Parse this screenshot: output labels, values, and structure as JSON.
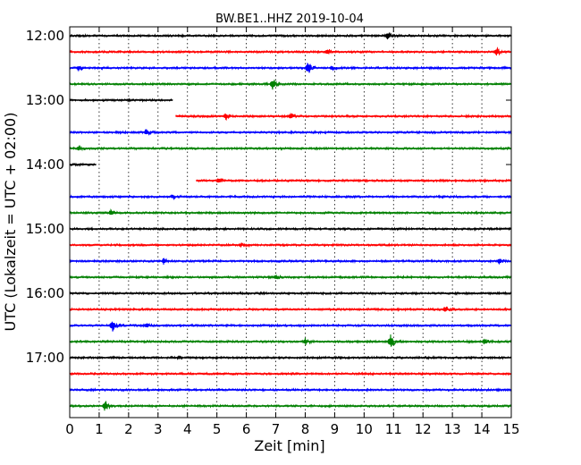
{
  "chart_data": {
    "type": "line",
    "title": "BW.BE1..HHZ 2019-10-04",
    "xlabel": "Zeit  [min]",
    "ylabel": "UTC (Lokalzeit = UTC + 02:00)",
    "xlim": [
      0,
      15
    ],
    "x_ticks": [
      "0",
      "1",
      "2",
      "3",
      "4",
      "5",
      "6",
      "7",
      "8",
      "9",
      "10",
      "11",
      "12",
      "13",
      "14",
      "15"
    ],
    "y_ticks": [
      "12:00",
      "13:00",
      "14:00",
      "15:00",
      "16:00",
      "17:00"
    ],
    "grid": "vertical dotted",
    "trace_colors": [
      "#000000",
      "#ff0000",
      "#0000ff",
      "#008000"
    ],
    "traces": [
      {
        "start": "12:00",
        "data_start_min": 0,
        "data_end_min": 15,
        "events": [
          {
            "t": 10.8,
            "amp": 0.5
          }
        ]
      },
      {
        "start": "12:15",
        "data_start_min": 0,
        "data_end_min": 15,
        "events": [
          {
            "t": 8.75,
            "amp": 0.4
          },
          {
            "t": 14.5,
            "amp": 0.5
          }
        ]
      },
      {
        "start": "12:30",
        "data_start_min": 0,
        "data_end_min": 15,
        "events": [
          {
            "t": 0.3,
            "amp": 0.3
          },
          {
            "t": 8.1,
            "amp": 0.85
          },
          {
            "t": 8.9,
            "amp": 0.3
          }
        ]
      },
      {
        "start": "12:45",
        "data_start_min": 0,
        "data_end_min": 15,
        "events": [
          {
            "t": 6.9,
            "amp": 0.75
          }
        ]
      },
      {
        "start": "13:00",
        "data_start_min": 0,
        "data_end_min": 3.5,
        "events": []
      },
      {
        "start": "13:15",
        "data_start_min": 3.6,
        "data_end_min": 15,
        "events": [
          {
            "t": 5.3,
            "amp": 0.4
          },
          {
            "t": 7.5,
            "amp": 0.4
          }
        ]
      },
      {
        "start": "13:30",
        "data_start_min": 0,
        "data_end_min": 15,
        "events": [
          {
            "t": 2.6,
            "amp": 0.4
          }
        ]
      },
      {
        "start": "13:45",
        "data_start_min": 0,
        "data_end_min": 15,
        "events": [
          {
            "t": 0.3,
            "amp": 0.3
          }
        ]
      },
      {
        "start": "14:00",
        "data_start_min": 0,
        "data_end_min": 0.9,
        "events": []
      },
      {
        "start": "14:15",
        "data_start_min": 4.3,
        "data_end_min": 15,
        "events": [
          {
            "t": 5.05,
            "amp": 0.4
          }
        ]
      },
      {
        "start": "14:30",
        "data_start_min": 0,
        "data_end_min": 15,
        "events": [
          {
            "t": 3.5,
            "amp": 0.2
          }
        ]
      },
      {
        "start": "14:45",
        "data_start_min": 0,
        "data_end_min": 15,
        "events": [
          {
            "t": 1.4,
            "amp": 0.4
          }
        ]
      },
      {
        "start": "15:00",
        "data_start_min": 0,
        "data_end_min": 15,
        "events": []
      },
      {
        "start": "15:15",
        "data_start_min": 0,
        "data_end_min": 15,
        "events": [
          {
            "t": 5.8,
            "amp": 0.2
          }
        ]
      },
      {
        "start": "15:30",
        "data_start_min": 0,
        "data_end_min": 15,
        "events": [
          {
            "t": 3.2,
            "amp": 0.4
          },
          {
            "t": 14.6,
            "amp": 0.45
          }
        ]
      },
      {
        "start": "15:45",
        "data_start_min": 0,
        "data_end_min": 15,
        "events": [
          {
            "t": 7.0,
            "amp": 0.3
          }
        ]
      },
      {
        "start": "16:00",
        "data_start_min": 0,
        "data_end_min": 15,
        "events": []
      },
      {
        "start": "16:15",
        "data_start_min": 0,
        "data_end_min": 15,
        "events": [
          {
            "t": 12.75,
            "amp": 0.4
          }
        ]
      },
      {
        "start": "16:30",
        "data_start_min": 0,
        "data_end_min": 15,
        "events": [
          {
            "t": 1.45,
            "amp": 0.75
          },
          {
            "t": 2.6,
            "amp": 0.3
          }
        ]
      },
      {
        "start": "16:45",
        "data_start_min": 0,
        "data_end_min": 15,
        "events": [
          {
            "t": 8.0,
            "amp": 0.4
          },
          {
            "t": 10.9,
            "amp": 0.85
          },
          {
            "t": 14.1,
            "amp": 0.4
          }
        ]
      },
      {
        "start": "17:00",
        "data_start_min": 0,
        "data_end_min": 15,
        "events": [
          {
            "t": 3.7,
            "amp": 0.2
          }
        ]
      },
      {
        "start": "17:15",
        "data_start_min": 0,
        "data_end_min": 15,
        "events": []
      },
      {
        "start": "17:30",
        "data_start_min": 0,
        "data_end_min": 15,
        "events": []
      },
      {
        "start": "17:45",
        "data_start_min": 0,
        "data_end_min": 15,
        "events": [
          {
            "t": 1.2,
            "amp": 0.65
          }
        ]
      }
    ]
  }
}
